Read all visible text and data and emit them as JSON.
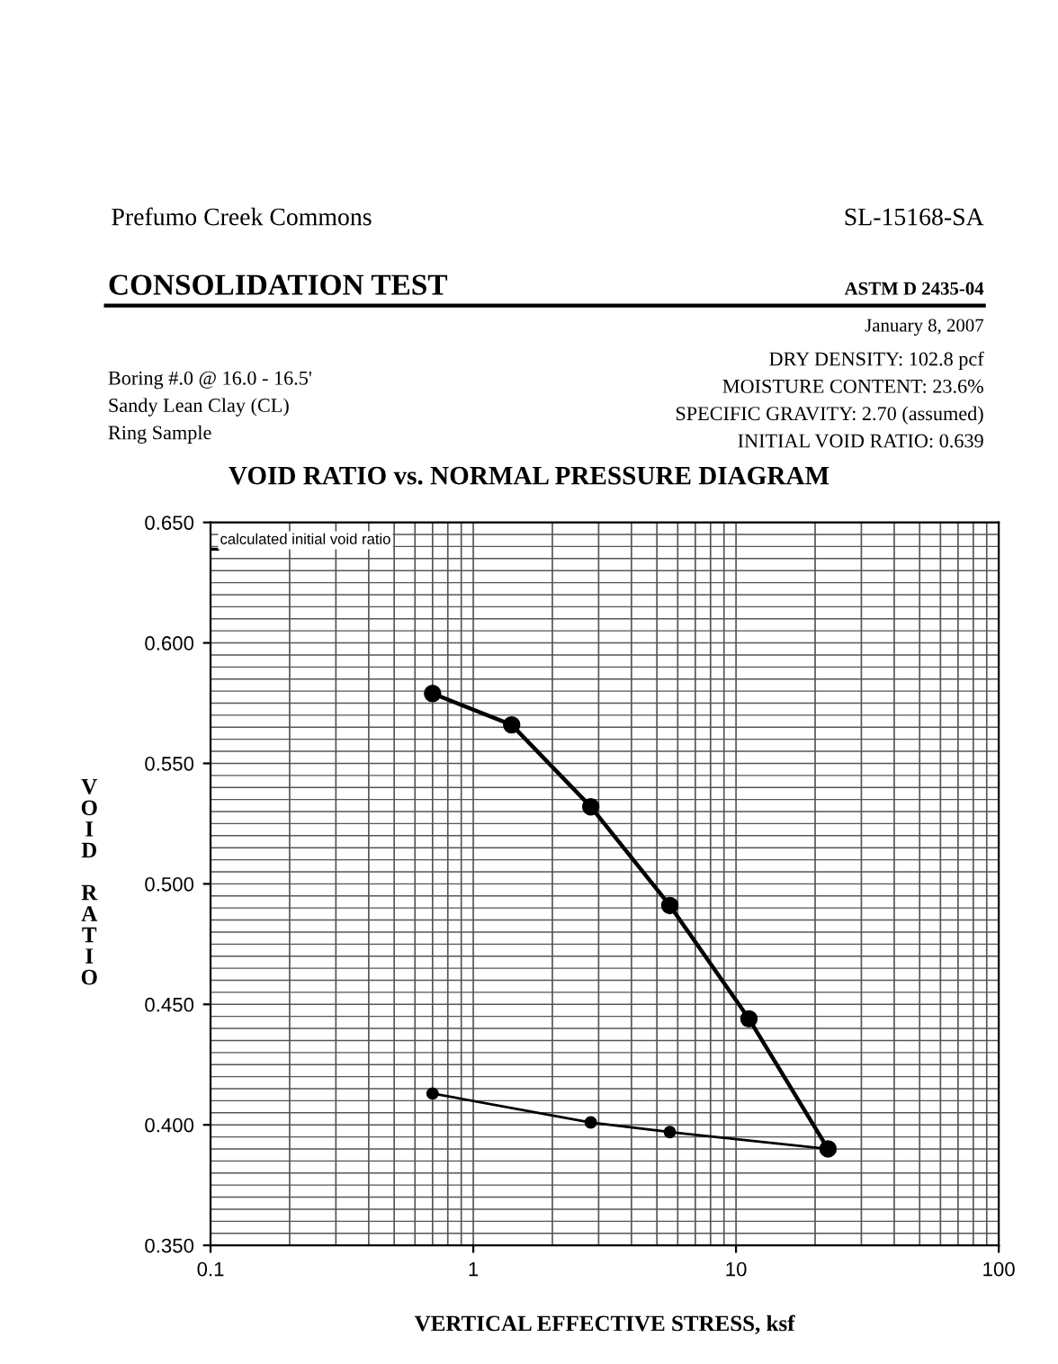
{
  "chart_data": {
    "type": "line",
    "title": "VOID RATIO vs. NORMAL PRESSURE DIAGRAM",
    "xlabel": "VERTICAL EFFECTIVE STRESS, ksf",
    "ylabel": "VOID RATIO",
    "series": [
      {
        "color": "#000000",
        "x": [
          0.7,
          1.4,
          2.8,
          5.6,
          11.2,
          22.4
        ],
        "values": [
          0.579,
          0.566,
          0.532,
          0.491,
          0.444,
          0.39
        ]
      },
      {
        "color": "#000000",
        "x": [
          22.4,
          5.6,
          2.8,
          0.7
        ],
        "values": [
          0.39,
          0.397,
          0.401,
          0.413
        ]
      }
    ],
    "log": "x",
    "xlim": [
      0.1,
      100
    ],
    "xticks": [
      0.1,
      1,
      10,
      100
    ],
    "ylim": [
      0.35,
      0.65
    ],
    "yticks": [
      {
        "value": 0.35,
        "label": "0.350"
      },
      {
        "value": 0.4,
        "label": "0.400"
      },
      {
        "value": 0.45,
        "label": "0.450"
      },
      {
        "value": 0.5,
        "label": "0.500"
      },
      {
        "value": 0.55,
        "label": "0.550"
      },
      {
        "value": 0.6,
        "label": "0.600"
      },
      {
        "value": 0.65,
        "label": "0.650"
      }
    ],
    "grid": true,
    "marker": "circle",
    "line_style": "solid",
    "annotations": [
      "Prefumo Creek Commons",
      "SL-15168-SA",
      "CONSOLIDATION TEST",
      "ASTM D 2435-04",
      "January 8, 2007",
      "Boring #.0 @ 16.0 - 16.5'",
      "Sandy Lean Clay (CL)",
      "Ring Sample",
      "DRY DENSITY: 102.8 pcf",
      "MOISTURE CONTENT: 23.6%",
      "SPECIFIC GRAVITY: 2.70 (assumed)",
      "INITIAL VOID RATIO: 0.639",
      "calculated initial void ratio"
    ]
  }
}
